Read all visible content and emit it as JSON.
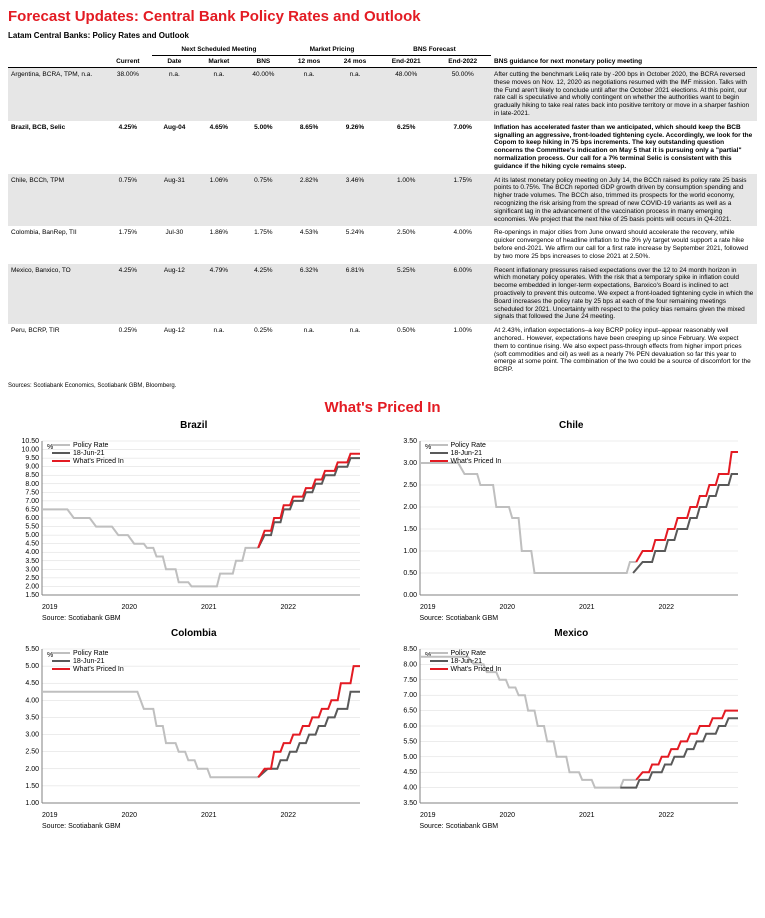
{
  "main_title": "Forecast Updates: Central Bank Policy Rates and Outlook",
  "table_title": "Latam Central Banks: Policy Rates and Outlook",
  "headers": {
    "next_meeting": "Next Scheduled Meeting",
    "market_pricing": "Market Pricing",
    "bns_forecast": "BNS Forecast",
    "current": "Current",
    "date": "Date",
    "market": "Market",
    "bns": "BNS",
    "m12": "12 mos",
    "m24": "24 mos",
    "end2021": "End-2021",
    "end2022": "End-2022",
    "guidance": "BNS guidance for next monetary policy meeting"
  },
  "rows": [
    {
      "name": "Argentina, BCRA, TPM, n.a.",
      "current": "38.00%",
      "date": "n.a.",
      "market": "n.a.",
      "bns": "40.00%",
      "m12": "n.a.",
      "m24": "n.a.",
      "end2021": "48.00%",
      "end2022": "50.00%",
      "guidance": "After cutting the benchmark Leliq rate by -200 bps in October 2020, the BCRA reversed these moves on Nov. 12, 2020 as negotiations resumed with the IMF mission. Talks with the Fund aren't likely to conclude until after the October 2021 elections. At this point, our rate call is speculative and wholly contingent on whether the authorities want to begin gradually hiking to take real rates back into positive territory or move in a sharper fashion in late-2021.",
      "shade": true,
      "bold": false
    },
    {
      "name": "Brazil, BCB, Selic",
      "current": "4.25%",
      "date": "Aug-04",
      "market": "4.65%",
      "bns": "5.00%",
      "m12": "8.65%",
      "m24": "9.26%",
      "end2021": "6.25%",
      "end2022": "7.00%",
      "guidance": "Inflation has accelerated faster than we anticipated, which should keep the BCB signalling an aggressive, front-loaded tightening cycle. Accordingly, we look for the Copom to keep hiking in 75 bps increments. The key outstanding question concerns the Committee's indication on May 5 that it is pursuing only a \"partial\" normalization process. Our call for a 7% terminal Selic is consistent with this guidance if the hiking cycle remains steep.",
      "shade": false,
      "bold": true
    },
    {
      "name": "Chile, BCCh, TPM",
      "current": "0.75%",
      "date": "Aug-31",
      "market": "1.06%",
      "bns": "0.75%",
      "m12": "2.82%",
      "m24": "3.46%",
      "end2021": "1.00%",
      "end2022": "1.75%",
      "guidance": "At its latest monetary policy meeting on July 14, the BCCh raised its policy rate 25 basis points to 0.75%. The BCCh reported GDP growth driven by consumption spending and higher trade volumes. The BCCh also, trimmed its prospects for the world economy, recognizing the risk arising from the spread of new COVID-19 variants as well as a significant lag in the advancement of the vaccination process in many emerging economies. We project that the next hike of 25 basis points will occurs in Q4-2021.",
      "shade": true,
      "bold": false
    },
    {
      "name": "Colombia, BanRep, TII",
      "current": "1.75%",
      "date": "Jul-30",
      "market": "1.86%",
      "bns": "1.75%",
      "m12": "4.53%",
      "m24": "5.24%",
      "end2021": "2.50%",
      "end2022": "4.00%",
      "guidance": "Re-openings in major cities from June onward should accelerate the recovery, while quicker convergence of headline inflation to the 3% y/y target would support a rate hike before end-2021. We affirm our call for a first rate increase by September 2021, followed by two more 25 bps increases to close 2021 at 2.50%.",
      "shade": false,
      "bold": false
    },
    {
      "name": "Mexico, Banxico, TO",
      "current": "4.25%",
      "date": "Aug-12",
      "market": "4.79%",
      "bns": "4.25%",
      "m12": "6.32%",
      "m24": "6.81%",
      "end2021": "5.25%",
      "end2022": "6.00%",
      "guidance": "Recent inflationary pressures raised expectations over the 12 to 24 month horizon in which monetary policy operates. With the risk that a temporary spike in inflation could become embedded in longer-term expectations, Banxico's Board is inclined to act proactively to prevent this outcome. We expect a front-loaded tightening cycle in which the Board increases the policy rate by 25 bps at each of the four remaining meetings scheduled for 2021. Uncertainty with respect to the policy bias remains given the mixed signals that followed the June 24 meeting.",
      "shade": true,
      "bold": false
    },
    {
      "name": "Peru, BCRP, TIR",
      "current": "0.25%",
      "date": "Aug-12",
      "market": "n.a.",
      "bns": "0.25%",
      "m12": "n.a.",
      "m24": "n.a.",
      "end2021": "0.50%",
      "end2022": "1.00%",
      "guidance": "At 2.43%, inflation expectations–a key BCRP policy input–appear reasonably well anchored.. However, expectations have been creeping up since February. We expect them to continue rising. We also expect pass-through effects from higher import prices (soft commodities and oil) as well as a nearly 7% PEN devaluation so far this year to emerge at some point. The combination of the two could  be a source of discomfort for the BCRP.",
      "shade": false,
      "bold": false
    }
  ],
  "sources": "Sources: Scotiabank Economics, Scotiabank GBM, Bloomberg.",
  "section_title": "What's Priced In",
  "legend": {
    "policy": "Policy Rate",
    "jun21": "18-Jun-21",
    "priced": "What's Priced In"
  },
  "colors": {
    "policy": "#bfbfbf",
    "jun21": "#595959",
    "priced": "#e31b23",
    "axis": "#808080",
    "grid": "#d9d9d9"
  },
  "charts": [
    {
      "title": "Brazil",
      "source": "Source: Scotiabank GBM",
      "ylim": [
        1.5,
        10.5
      ],
      "ystep": 0.5,
      "yunit": "%",
      "xlabels": [
        "2019",
        "2020",
        "2021",
        "2022"
      ],
      "policy": [
        [
          0,
          6.5
        ],
        [
          0.08,
          6.5
        ],
        [
          0.1,
          6.0
        ],
        [
          0.15,
          6.0
        ],
        [
          0.17,
          5.5
        ],
        [
          0.22,
          5.5
        ],
        [
          0.24,
          5.0
        ],
        [
          0.27,
          5.0
        ],
        [
          0.29,
          4.5
        ],
        [
          0.32,
          4.5
        ],
        [
          0.33,
          4.25
        ],
        [
          0.35,
          4.25
        ],
        [
          0.36,
          3.75
        ],
        [
          0.38,
          3.75
        ],
        [
          0.39,
          3.0
        ],
        [
          0.42,
          3.0
        ],
        [
          0.43,
          2.25
        ],
        [
          0.46,
          2.25
        ],
        [
          0.47,
          2.0
        ],
        [
          0.55,
          2.0
        ],
        [
          0.56,
          2.75
        ],
        [
          0.6,
          2.75
        ],
        [
          0.61,
          3.5
        ],
        [
          0.63,
          3.5
        ],
        [
          0.64,
          4.25
        ],
        [
          0.68,
          4.25
        ]
      ],
      "jun21": [
        [
          0.68,
          4.25
        ],
        [
          0.7,
          5.0
        ],
        [
          0.72,
          5.0
        ],
        [
          0.73,
          5.75
        ],
        [
          0.75,
          5.75
        ],
        [
          0.76,
          6.5
        ],
        [
          0.78,
          6.5
        ],
        [
          0.79,
          7.0
        ],
        [
          0.82,
          7.0
        ],
        [
          0.83,
          7.5
        ],
        [
          0.85,
          7.5
        ],
        [
          0.86,
          8.0
        ],
        [
          0.88,
          8.0
        ],
        [
          0.89,
          8.5
        ],
        [
          0.92,
          8.5
        ],
        [
          0.93,
          9.0
        ],
        [
          0.96,
          9.0
        ],
        [
          0.97,
          9.5
        ],
        [
          1.0,
          9.5
        ]
      ],
      "priced": [
        [
          0.68,
          4.25
        ],
        [
          0.7,
          5.25
        ],
        [
          0.72,
          5.25
        ],
        [
          0.73,
          6.0
        ],
        [
          0.75,
          6.0
        ],
        [
          0.76,
          6.75
        ],
        [
          0.78,
          6.75
        ],
        [
          0.79,
          7.25
        ],
        [
          0.82,
          7.25
        ],
        [
          0.83,
          7.75
        ],
        [
          0.85,
          7.75
        ],
        [
          0.86,
          8.25
        ],
        [
          0.88,
          8.25
        ],
        [
          0.89,
          8.75
        ],
        [
          0.92,
          8.75
        ],
        [
          0.93,
          9.25
        ],
        [
          0.96,
          9.25
        ],
        [
          0.97,
          9.75
        ],
        [
          1.0,
          9.75
        ]
      ]
    },
    {
      "title": "Chile",
      "source": "Source: Scotiabank GBM",
      "ylim": [
        0.0,
        3.5
      ],
      "ystep": 0.5,
      "yunit": "%",
      "xlabels": [
        "2019",
        "2020",
        "2021",
        "2022"
      ],
      "policy": [
        [
          0,
          3.0
        ],
        [
          0.12,
          3.0
        ],
        [
          0.14,
          2.75
        ],
        [
          0.18,
          2.75
        ],
        [
          0.19,
          2.5
        ],
        [
          0.23,
          2.5
        ],
        [
          0.24,
          2.0
        ],
        [
          0.28,
          2.0
        ],
        [
          0.29,
          1.75
        ],
        [
          0.31,
          1.75
        ],
        [
          0.32,
          1.0
        ],
        [
          0.35,
          1.0
        ],
        [
          0.36,
          0.5
        ],
        [
          0.65,
          0.5
        ],
        [
          0.66,
          0.75
        ],
        [
          0.68,
          0.75
        ]
      ],
      "jun21": [
        [
          0.67,
          0.5
        ],
        [
          0.7,
          0.75
        ],
        [
          0.73,
          0.75
        ],
        [
          0.74,
          1.0
        ],
        [
          0.77,
          1.0
        ],
        [
          0.78,
          1.25
        ],
        [
          0.8,
          1.25
        ],
        [
          0.81,
          1.5
        ],
        [
          0.84,
          1.5
        ],
        [
          0.85,
          1.75
        ],
        [
          0.87,
          1.75
        ],
        [
          0.88,
          2.0
        ],
        [
          0.9,
          2.0
        ],
        [
          0.91,
          2.25
        ],
        [
          0.93,
          2.25
        ],
        [
          0.94,
          2.5
        ],
        [
          0.97,
          2.5
        ],
        [
          0.98,
          2.75
        ],
        [
          1.0,
          2.75
        ]
      ],
      "priced": [
        [
          0.68,
          0.75
        ],
        [
          0.7,
          1.0
        ],
        [
          0.73,
          1.0
        ],
        [
          0.74,
          1.25
        ],
        [
          0.77,
          1.25
        ],
        [
          0.78,
          1.5
        ],
        [
          0.8,
          1.5
        ],
        [
          0.81,
          1.75
        ],
        [
          0.84,
          1.75
        ],
        [
          0.85,
          2.0
        ],
        [
          0.87,
          2.0
        ],
        [
          0.88,
          2.25
        ],
        [
          0.9,
          2.25
        ],
        [
          0.91,
          2.5
        ],
        [
          0.93,
          2.5
        ],
        [
          0.94,
          2.75
        ],
        [
          0.97,
          2.75
        ],
        [
          0.98,
          3.25
        ],
        [
          1.0,
          3.25
        ]
      ]
    },
    {
      "title": "Colombia",
      "source": "Source: Scotiabank GBM",
      "ylim": [
        1.0,
        5.5
      ],
      "ystep": 0.5,
      "yunit": "%",
      "xlabels": [
        "2019",
        "2020",
        "2021",
        "2022"
      ],
      "policy": [
        [
          0,
          4.25
        ],
        [
          0.3,
          4.25
        ],
        [
          0.32,
          3.75
        ],
        [
          0.35,
          3.75
        ],
        [
          0.36,
          3.25
        ],
        [
          0.38,
          3.25
        ],
        [
          0.39,
          2.75
        ],
        [
          0.42,
          2.75
        ],
        [
          0.43,
          2.5
        ],
        [
          0.45,
          2.5
        ],
        [
          0.46,
          2.25
        ],
        [
          0.48,
          2.25
        ],
        [
          0.49,
          2.0
        ],
        [
          0.52,
          2.0
        ],
        [
          0.53,
          1.75
        ],
        [
          0.68,
          1.75
        ]
      ],
      "jun21": [
        [
          0.68,
          1.75
        ],
        [
          0.71,
          2.0
        ],
        [
          0.74,
          2.0
        ],
        [
          0.75,
          2.25
        ],
        [
          0.77,
          2.25
        ],
        [
          0.78,
          2.5
        ],
        [
          0.8,
          2.5
        ],
        [
          0.81,
          2.75
        ],
        [
          0.83,
          2.75
        ],
        [
          0.84,
          3.0
        ],
        [
          0.86,
          3.0
        ],
        [
          0.87,
          3.25
        ],
        [
          0.89,
          3.25
        ],
        [
          0.9,
          3.5
        ],
        [
          0.92,
          3.5
        ],
        [
          0.93,
          3.75
        ],
        [
          0.96,
          3.75
        ],
        [
          0.97,
          4.25
        ],
        [
          1.0,
          4.25
        ]
      ],
      "priced": [
        [
          0.68,
          1.75
        ],
        [
          0.7,
          2.0
        ],
        [
          0.72,
          2.0
        ],
        [
          0.73,
          2.5
        ],
        [
          0.75,
          2.5
        ],
        [
          0.76,
          2.75
        ],
        [
          0.78,
          2.75
        ],
        [
          0.79,
          3.0
        ],
        [
          0.81,
          3.0
        ],
        [
          0.82,
          3.25
        ],
        [
          0.84,
          3.25
        ],
        [
          0.85,
          3.5
        ],
        [
          0.87,
          3.5
        ],
        [
          0.88,
          3.75
        ],
        [
          0.9,
          3.75
        ],
        [
          0.91,
          4.0
        ],
        [
          0.93,
          4.0
        ],
        [
          0.94,
          4.5
        ],
        [
          0.97,
          4.5
        ],
        [
          0.98,
          5.0
        ],
        [
          1.0,
          5.0
        ]
      ]
    },
    {
      "title": "Mexico",
      "source": "Source: Scotiabank GBM",
      "ylim": [
        3.5,
        8.5
      ],
      "ystep": 0.5,
      "yunit": "%",
      "xlabels": [
        "2019",
        "2020",
        "2021",
        "2022"
      ],
      "policy": [
        [
          0,
          8.25
        ],
        [
          0.15,
          8.25
        ],
        [
          0.17,
          8.0
        ],
        [
          0.2,
          8.0
        ],
        [
          0.21,
          7.75
        ],
        [
          0.24,
          7.75
        ],
        [
          0.25,
          7.5
        ],
        [
          0.27,
          7.5
        ],
        [
          0.28,
          7.25
        ],
        [
          0.3,
          7.25
        ],
        [
          0.31,
          7.0
        ],
        [
          0.33,
          7.0
        ],
        [
          0.34,
          6.5
        ],
        [
          0.36,
          6.5
        ],
        [
          0.37,
          6.0
        ],
        [
          0.39,
          6.0
        ],
        [
          0.4,
          5.5
        ],
        [
          0.42,
          5.5
        ],
        [
          0.43,
          5.0
        ],
        [
          0.46,
          5.0
        ],
        [
          0.47,
          4.5
        ],
        [
          0.5,
          4.5
        ],
        [
          0.51,
          4.25
        ],
        [
          0.54,
          4.25
        ],
        [
          0.55,
          4.0
        ],
        [
          0.63,
          4.0
        ],
        [
          0.64,
          4.25
        ],
        [
          0.68,
          4.25
        ]
      ],
      "jun21": [
        [
          0.63,
          4.0
        ],
        [
          0.68,
          4.0
        ],
        [
          0.69,
          4.25
        ],
        [
          0.72,
          4.25
        ],
        [
          0.73,
          4.5
        ],
        [
          0.76,
          4.5
        ],
        [
          0.77,
          4.75
        ],
        [
          0.79,
          4.75
        ],
        [
          0.8,
          5.0
        ],
        [
          0.83,
          5.0
        ],
        [
          0.84,
          5.25
        ],
        [
          0.86,
          5.25
        ],
        [
          0.87,
          5.5
        ],
        [
          0.89,
          5.5
        ],
        [
          0.9,
          5.75
        ],
        [
          0.93,
          5.75
        ],
        [
          0.94,
          6.0
        ],
        [
          0.96,
          6.0
        ],
        [
          0.97,
          6.25
        ],
        [
          1.0,
          6.25
        ]
      ],
      "priced": [
        [
          0.68,
          4.25
        ],
        [
          0.7,
          4.5
        ],
        [
          0.72,
          4.5
        ],
        [
          0.73,
          4.75
        ],
        [
          0.75,
          4.75
        ],
        [
          0.76,
          5.0
        ],
        [
          0.78,
          5.0
        ],
        [
          0.79,
          5.25
        ],
        [
          0.81,
          5.25
        ],
        [
          0.82,
          5.5
        ],
        [
          0.84,
          5.5
        ],
        [
          0.85,
          5.75
        ],
        [
          0.87,
          5.75
        ],
        [
          0.88,
          6.0
        ],
        [
          0.91,
          6.0
        ],
        [
          0.92,
          6.25
        ],
        [
          0.95,
          6.25
        ],
        [
          0.96,
          6.5
        ],
        [
          1.0,
          6.5
        ]
      ]
    }
  ]
}
